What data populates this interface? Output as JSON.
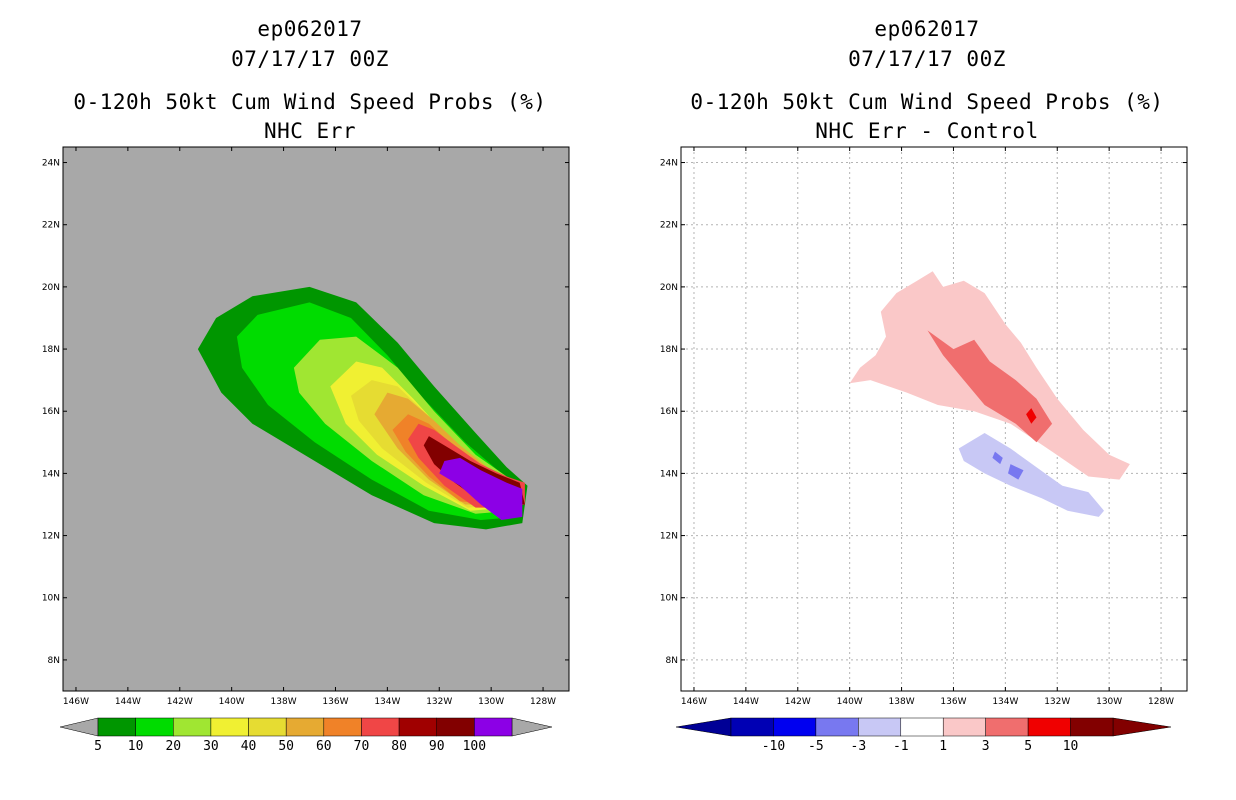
{
  "panels": [
    {
      "storm": "ep062017",
      "datetime": "07/17/17 00Z",
      "product": "0-120h 50kt Cum Wind Speed Probs (%)",
      "subtitle": "NHC Err",
      "background_color": "#a8a8a8"
    },
    {
      "storm": "ep062017",
      "datetime": "07/17/17 00Z",
      "product": "0-120h 50kt Cum Wind Speed Probs (%)",
      "subtitle": "NHC Err - Control",
      "background_color": "#ffffff"
    }
  ],
  "chart_data": [
    {
      "type": "heatmap",
      "title": "0-120h 50kt Cum Wind Speed Probs (%) NHC Err",
      "x_range_lon": [
        -146.5,
        -127.0
      ],
      "y_range_lat": [
        7.0,
        24.5
      ],
      "x_tick_labels": [
        "146W",
        "144W",
        "142W",
        "140W",
        "138W",
        "136W",
        "134W",
        "132W",
        "130W",
        "128W"
      ],
      "y_tick_labels": [
        "8N",
        "10N",
        "12N",
        "14N",
        "16N",
        "18N",
        "20N",
        "22N",
        "24N"
      ],
      "grid": false,
      "legend": {
        "position": "bottom",
        "labels": [
          "5",
          "10",
          "20",
          "30",
          "40",
          "50",
          "60",
          "70",
          "80",
          "90",
          "100"
        ],
        "colors": [
          "#009600",
          "#00dc00",
          "#a0e632",
          "#f0f032",
          "#e6dc32",
          "#e6aa32",
          "#f08228",
          "#f04646",
          "#a00000",
          "#820000",
          "#8c00e6"
        ],
        "below_color": "#a8a8a8",
        "above_color": "#a8a8a8"
      },
      "contours": [
        {
          "level": "5-10",
          "color": "#009600",
          "points": [
            [
              -141.3,
              18.0
            ],
            [
              -140.6,
              19.0
            ],
            [
              -139.2,
              19.7
            ],
            [
              -137.0,
              20.0
            ],
            [
              -135.2,
              19.5
            ],
            [
              -133.6,
              18.2
            ],
            [
              -132.2,
              16.8
            ],
            [
              -130.6,
              15.3
            ],
            [
              -129.4,
              14.2
            ],
            [
              -128.6,
              13.6
            ],
            [
              -128.8,
              12.4
            ],
            [
              -130.2,
              12.2
            ],
            [
              -132.2,
              12.4
            ],
            [
              -134.6,
              13.3
            ],
            [
              -137.2,
              14.6
            ],
            [
              -139.2,
              15.6
            ],
            [
              -140.4,
              16.6
            ]
          ]
        },
        {
          "level": "10-20",
          "color": "#00dc00",
          "points": [
            [
              -139.8,
              18.4
            ],
            [
              -139.0,
              19.1
            ],
            [
              -137.0,
              19.5
            ],
            [
              -135.4,
              19.0
            ],
            [
              -134.0,
              17.8
            ],
            [
              -132.6,
              16.4
            ],
            [
              -131.0,
              15.0
            ],
            [
              -129.6,
              14.0
            ],
            [
              -128.8,
              13.6
            ],
            [
              -129.0,
              12.6
            ],
            [
              -130.4,
              12.5
            ],
            [
              -132.4,
              12.8
            ],
            [
              -134.6,
              13.8
            ],
            [
              -136.8,
              15.0
            ],
            [
              -138.6,
              16.2
            ],
            [
              -139.6,
              17.4
            ]
          ]
        },
        {
          "level": "20-30",
          "color": "#a0e632",
          "points": [
            [
              -137.6,
              17.4
            ],
            [
              -136.6,
              18.3
            ],
            [
              -135.2,
              18.4
            ],
            [
              -133.6,
              17.4
            ],
            [
              -132.2,
              16.0
            ],
            [
              -130.6,
              14.6
            ],
            [
              -129.4,
              13.9
            ],
            [
              -128.9,
              13.5
            ],
            [
              -129.2,
              12.8
            ],
            [
              -130.6,
              12.7
            ],
            [
              -132.6,
              13.3
            ],
            [
              -134.6,
              14.4
            ],
            [
              -136.4,
              15.6
            ],
            [
              -137.4,
              16.6
            ]
          ]
        },
        {
          "level": "30-40",
          "color": "#f0f032",
          "points": [
            [
              -136.2,
              16.8
            ],
            [
              -135.2,
              17.6
            ],
            [
              -134.2,
              17.4
            ],
            [
              -133.0,
              16.4
            ],
            [
              -131.8,
              15.3
            ],
            [
              -130.4,
              14.3
            ],
            [
              -129.3,
              13.8
            ],
            [
              -128.9,
              13.4
            ],
            [
              -129.4,
              12.9
            ],
            [
              -130.8,
              12.8
            ],
            [
              -132.6,
              13.6
            ],
            [
              -134.4,
              14.6
            ],
            [
              -135.6,
              15.6
            ]
          ]
        },
        {
          "level": "40-50",
          "color": "#e6dc32",
          "points": [
            [
              -135.4,
              16.5
            ],
            [
              -134.6,
              17.0
            ],
            [
              -133.6,
              16.8
            ],
            [
              -132.6,
              16.0
            ],
            [
              -131.4,
              15.0
            ],
            [
              -130.2,
              14.2
            ],
            [
              -129.2,
              13.8
            ],
            [
              -128.9,
              13.3
            ],
            [
              -129.5,
              13.0
            ],
            [
              -130.9,
              12.9
            ],
            [
              -132.5,
              13.7
            ],
            [
              -134.2,
              14.8
            ],
            [
              -135.1,
              15.7
            ]
          ]
        },
        {
          "level": "50-60",
          "color": "#e6aa32",
          "points": [
            [
              -134.5,
              15.9
            ],
            [
              -134.0,
              16.6
            ],
            [
              -133.2,
              16.4
            ],
            [
              -132.2,
              15.7
            ],
            [
              -131.2,
              14.9
            ],
            [
              -130.0,
              14.1
            ],
            [
              -129.1,
              13.7
            ],
            [
              -129.0,
              13.2
            ],
            [
              -129.8,
              13.0
            ],
            [
              -131.0,
              13.0
            ],
            [
              -132.4,
              13.8
            ],
            [
              -133.6,
              14.8
            ]
          ]
        },
        {
          "level": "60-70",
          "color": "#f08228",
          "points": [
            [
              -133.8,
              15.4
            ],
            [
              -133.2,
              15.9
            ],
            [
              -132.4,
              15.6
            ],
            [
              -131.6,
              15.0
            ],
            [
              -130.6,
              14.3
            ],
            [
              -129.6,
              13.9
            ],
            [
              -129.0,
              13.6
            ],
            [
              -129.1,
              13.1
            ],
            [
              -130.0,
              13.0
            ],
            [
              -131.2,
              13.1
            ],
            [
              -132.4,
              13.9
            ],
            [
              -133.3,
              14.7
            ]
          ]
        },
        {
          "level": "70-80",
          "color": "#f04646",
          "points": [
            [
              -133.2,
              15.1
            ],
            [
              -132.8,
              15.6
            ],
            [
              -132.2,
              15.4
            ],
            [
              -131.4,
              14.9
            ],
            [
              -130.4,
              14.3
            ],
            [
              -129.4,
              13.9
            ],
            [
              -128.7,
              13.7
            ],
            [
              -128.7,
              13.0
            ],
            [
              -129.4,
              12.9
            ],
            [
              -130.6,
              12.9
            ],
            [
              -131.8,
              13.6
            ],
            [
              -132.8,
              14.5
            ]
          ]
        },
        {
          "level": "80-90",
          "color": "#820000",
          "points": [
            [
              -132.6,
              14.9
            ],
            [
              -132.4,
              15.2
            ],
            [
              -131.8,
              14.9
            ],
            [
              -130.8,
              14.4
            ],
            [
              -129.8,
              14.0
            ],
            [
              -128.9,
              13.7
            ],
            [
              -128.7,
              13.0
            ],
            [
              -129.3,
              13.0
            ],
            [
              -130.4,
              13.1
            ],
            [
              -131.4,
              13.7
            ],
            [
              -132.2,
              14.3
            ]
          ]
        },
        {
          "level": "90-100",
          "color": "#8c00e6",
          "points": [
            [
              -131.8,
              14.4
            ],
            [
              -131.2,
              14.5
            ],
            [
              -130.4,
              14.1
            ],
            [
              -129.4,
              13.7
            ],
            [
              -128.8,
              13.5
            ],
            [
              -128.8,
              12.6
            ],
            [
              -129.6,
              12.5
            ],
            [
              -130.4,
              13.0
            ],
            [
              -131.2,
              13.6
            ],
            [
              -132.0,
              14.0
            ]
          ]
        }
      ]
    },
    {
      "type": "heatmap",
      "title": "0-120h 50kt Cum Wind Speed Probs (%) NHC Err - Control",
      "x_range_lon": [
        -146.5,
        -127.0
      ],
      "y_range_lat": [
        7.0,
        24.5
      ],
      "x_tick_labels": [
        "146W",
        "144W",
        "142W",
        "140W",
        "138W",
        "136W",
        "134W",
        "132W",
        "130W",
        "128W"
      ],
      "y_tick_labels": [
        "8N",
        "10N",
        "12N",
        "14N",
        "16N",
        "18N",
        "20N",
        "22N",
        "24N"
      ],
      "grid": true,
      "legend": {
        "position": "bottom",
        "labels": [
          "-10",
          "-5",
          "-3",
          "-1",
          "1",
          "3",
          "5",
          "10"
        ],
        "colors": [
          "#0000b4",
          "#0000f0",
          "#7878f0",
          "#c8c8f5",
          "#ffffff",
          "#fac8c8",
          "#f06e6e",
          "#f00000",
          "#820000"
        ],
        "below_color": "#000096",
        "above_color": "#820000"
      },
      "contours": [
        {
          "level": "1-3",
          "color": "#fac8c8",
          "points": [
            [
              -138.8,
              19.2
            ],
            [
              -138.2,
              19.8
            ],
            [
              -137.4,
              20.2
            ],
            [
              -136.8,
              20.5
            ],
            [
              -136.4,
              20.0
            ],
            [
              -135.6,
              20.2
            ],
            [
              -134.8,
              19.8
            ],
            [
              -134.0,
              18.8
            ],
            [
              -133.4,
              18.2
            ],
            [
              -132.8,
              17.4
            ],
            [
              -132.0,
              16.4
            ],
            [
              -131.0,
              15.4
            ],
            [
              -130.0,
              14.6
            ],
            [
              -129.2,
              14.3
            ],
            [
              -129.6,
              13.8
            ],
            [
              -130.8,
              13.9
            ],
            [
              -132.2,
              14.7
            ],
            [
              -133.8,
              15.6
            ],
            [
              -135.2,
              16.0
            ],
            [
              -136.6,
              16.2
            ],
            [
              -137.8,
              16.6
            ],
            [
              -139.2,
              17.0
            ],
            [
              -140.0,
              16.9
            ],
            [
              -139.6,
              17.4
            ],
            [
              -139.0,
              17.8
            ],
            [
              -138.6,
              18.4
            ]
          ]
        },
        {
          "level": "3-5",
          "color": "#f06e6e",
          "points": [
            [
              -137.0,
              18.6
            ],
            [
              -136.0,
              18.0
            ],
            [
              -135.2,
              18.3
            ],
            [
              -134.6,
              17.6
            ],
            [
              -133.6,
              17.0
            ],
            [
              -132.8,
              16.4
            ],
            [
              -132.2,
              15.6
            ],
            [
              -132.8,
              15.0
            ],
            [
              -133.6,
              15.6
            ],
            [
              -134.8,
              16.2
            ],
            [
              -135.6,
              17.0
            ],
            [
              -136.4,
              17.8
            ]
          ]
        },
        {
          "level": "5-10",
          "color": "#f00000",
          "points": [
            [
              -133.0,
              16.1
            ],
            [
              -132.8,
              15.8
            ],
            [
              -133.0,
              15.6
            ],
            [
              -133.2,
              15.9
            ]
          ]
        },
        {
          "level": "-3--1",
          "color": "#c8c8f5",
          "points": [
            [
              -135.8,
              14.8
            ],
            [
              -134.8,
              15.3
            ],
            [
              -133.8,
              14.8
            ],
            [
              -132.8,
              14.2
            ],
            [
              -131.8,
              13.6
            ],
            [
              -130.8,
              13.4
            ],
            [
              -130.2,
              12.8
            ],
            [
              -130.4,
              12.6
            ],
            [
              -131.6,
              12.8
            ],
            [
              -132.6,
              13.2
            ],
            [
              -133.8,
              13.6
            ],
            [
              -134.8,
              14.0
            ],
            [
              -135.6,
              14.4
            ]
          ]
        },
        {
          "level": "-5--3",
          "color": "#7878f0",
          "points": [
            [
              -134.4,
              14.7
            ],
            [
              -134.1,
              14.5
            ],
            [
              -134.2,
              14.3
            ],
            [
              -134.5,
              14.5
            ]
          ]
        },
        {
          "level": "-5--3b",
          "color": "#7878f0",
          "points": [
            [
              -133.8,
              14.3
            ],
            [
              -133.3,
              14.1
            ],
            [
              -133.5,
              13.8
            ],
            [
              -133.9,
              14.0
            ]
          ]
        }
      ]
    }
  ]
}
